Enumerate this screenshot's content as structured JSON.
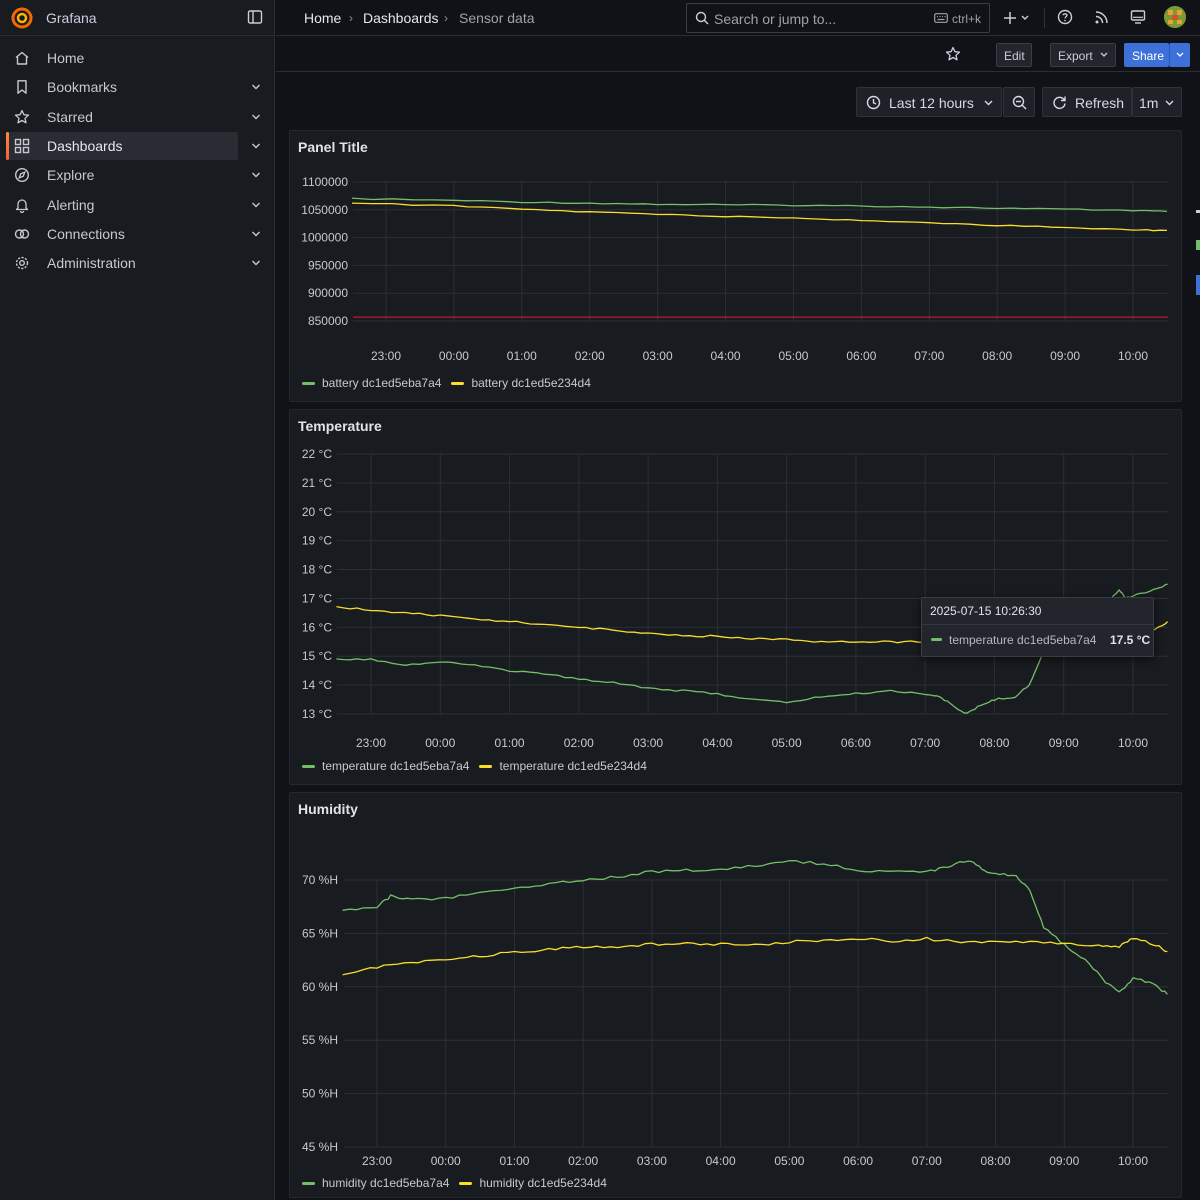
{
  "app": {
    "name": "Grafana"
  },
  "sidebar": {
    "items": [
      {
        "label": "Home",
        "icon": "home-icon",
        "chevron": false,
        "active": false
      },
      {
        "label": "Bookmarks",
        "icon": "bookmark-icon",
        "chevron": true,
        "active": false
      },
      {
        "label": "Starred",
        "icon": "star-icon",
        "chevron": true,
        "active": false
      },
      {
        "label": "Dashboards",
        "icon": "dashboards-grid-icon",
        "chevron": true,
        "active": true
      },
      {
        "label": "Explore",
        "icon": "compass-icon",
        "chevron": true,
        "active": false
      },
      {
        "label": "Alerting",
        "icon": "bell-icon",
        "chevron": true,
        "active": false
      },
      {
        "label": "Connections",
        "icon": "connections-icon",
        "chevron": true,
        "active": false
      },
      {
        "label": "Administration",
        "icon": "cog-icon",
        "chevron": true,
        "active": false
      }
    ]
  },
  "breadcrumb": [
    "Home",
    "Dashboards",
    "Sensor data"
  ],
  "search": {
    "placeholder": "Search or jump to...",
    "shortcut": "ctrl+k"
  },
  "toolbar": {
    "edit_label": "Edit",
    "export_label": "Export",
    "share_label": "Share"
  },
  "time": {
    "range_label": "Last 12 hours",
    "refresh_label": "Refresh",
    "interval": "1m"
  },
  "colors": {
    "green": "#73bf69",
    "yellow": "#fade2a",
    "threshold": "#c4162a",
    "accent": "#3d71d9"
  },
  "tooltip": {
    "time": "2025-07-15 10:26:30",
    "series": "temperature dc1ed5eba7a4",
    "value": "17.5 °C"
  },
  "panels": [
    {
      "title": "Panel Title",
      "legend": [
        "battery dc1ed5eba7a4",
        "battery dc1ed5e234d4"
      ]
    },
    {
      "title": "Temperature",
      "legend": [
        "temperature dc1ed5eba7a4",
        "temperature dc1ed5e234d4"
      ]
    },
    {
      "title": "Humidity",
      "legend": [
        "humidity dc1ed5eba7a4",
        "humidity dc1ed5e234d4"
      ]
    }
  ],
  "chart_data": [
    {
      "type": "line",
      "title": "Panel Title",
      "x_ticks": [
        "23:00",
        "00:00",
        "01:00",
        "02:00",
        "03:00",
        "04:00",
        "05:00",
        "06:00",
        "07:00",
        "08:00",
        "09:00",
        "10:00"
      ],
      "y_ticks": [
        "1100000",
        "1050000",
        "1000000",
        "950000",
        "900000",
        "850000"
      ],
      "ylim": [
        850000,
        1100000
      ],
      "grid": true,
      "legend_placement": "bottom-left",
      "threshold": 857000,
      "series": [
        {
          "name": "battery dc1ed5eba7a4",
          "color": "#73bf69",
          "x": [
            -1.5,
            0,
            1,
            2,
            3,
            4,
            5,
            6,
            7,
            8,
            9,
            10,
            10.5
          ],
          "y": [
            1070000,
            1067000,
            1064000,
            1062000,
            1060000,
            1059000,
            1058000,
            1057000,
            1055000,
            1053000,
            1051000,
            1049000,
            1047000
          ]
        },
        {
          "name": "battery dc1ed5e234d4",
          "color": "#fade2a",
          "x": [
            -1.5,
            0,
            1,
            2,
            3,
            4,
            5,
            6,
            7,
            8,
            9,
            10,
            10.5
          ],
          "y": [
            1062000,
            1057000,
            1051000,
            1046000,
            1042000,
            1038000,
            1035000,
            1031000,
            1027000,
            1022000,
            1018000,
            1014000,
            1013000
          ]
        }
      ]
    },
    {
      "type": "line",
      "title": "Temperature",
      "x_ticks": [
        "23:00",
        "00:00",
        "01:00",
        "02:00",
        "03:00",
        "04:00",
        "05:00",
        "06:00",
        "07:00",
        "08:00",
        "09:00",
        "10:00"
      ],
      "y_ticks": [
        "22 °C",
        "21 °C",
        "20 °C",
        "19 °C",
        "18 °C",
        "17 °C",
        "16 °C",
        "15 °C",
        "14 °C",
        "13 °C"
      ],
      "ylim": [
        13,
        22
      ],
      "grid": true,
      "legend_placement": "bottom-left",
      "series": [
        {
          "name": "temperature dc1ed5eba7a4",
          "color": "#73bf69",
          "x": [
            -1.5,
            -1,
            -0.5,
            0,
            0.5,
            1,
            1.5,
            2,
            2.5,
            3,
            3.5,
            4,
            4.5,
            5,
            5.5,
            6,
            6.5,
            7,
            7.2,
            7.4,
            7.6,
            7.8,
            8,
            8.3,
            8.5,
            8.7,
            9,
            9.3,
            9.6,
            9.8,
            9.9,
            10,
            10.3,
            10.5
          ],
          "y": [
            14.9,
            14.9,
            14.7,
            14.8,
            14.7,
            14.5,
            14.4,
            14.2,
            14.1,
            13.9,
            13.8,
            13.7,
            13.5,
            13.4,
            13.6,
            13.7,
            13.8,
            13.7,
            13.6,
            13.3,
            13.0,
            13.3,
            13.5,
            13.6,
            14.0,
            15.1,
            16.1,
            16.4,
            16.8,
            17.3,
            17.0,
            17.1,
            17.3,
            17.5
          ]
        },
        {
          "name": "temperature dc1ed5e234d4",
          "color": "#fade2a",
          "x": [
            -1.5,
            -1,
            -0.5,
            0,
            0.5,
            1,
            1.5,
            2,
            2.5,
            3,
            3.5,
            4,
            4.5,
            5,
            5.5,
            6,
            6.5,
            7,
            7.5,
            8,
            8.5,
            9,
            9.5,
            10,
            10.3,
            10.5
          ],
          "y": [
            16.7,
            16.6,
            16.5,
            16.4,
            16.3,
            16.2,
            16.1,
            16.0,
            15.9,
            15.8,
            15.7,
            15.7,
            15.6,
            15.6,
            15.5,
            15.5,
            15.5,
            15.5,
            15.5,
            15.5,
            15.5,
            15.6,
            15.7,
            15.8,
            15.9,
            16.2
          ]
        }
      ]
    },
    {
      "type": "line",
      "title": "Humidity",
      "x_ticks": [
        "23:00",
        "00:00",
        "01:00",
        "02:00",
        "03:00",
        "04:00",
        "05:00",
        "06:00",
        "07:00",
        "08:00",
        "09:00",
        "10:00"
      ],
      "y_ticks": [
        "70 %H",
        "65 %H",
        "60 %H",
        "55 %H",
        "50 %H",
        "45 %H"
      ],
      "ylim": [
        45,
        73
      ],
      "grid": true,
      "legend_placement": "bottom-left",
      "series": [
        {
          "name": "humidity dc1ed5eba7a4",
          "color": "#73bf69",
          "x": [
            -1.5,
            -1,
            -0.8,
            -0.5,
            0,
            0.5,
            1,
            1.5,
            2,
            2.5,
            3,
            3.5,
            4,
            4.5,
            5,
            5.5,
            6,
            6.5,
            7,
            7.3,
            7.6,
            7.8,
            8,
            8.3,
            8.5,
            8.7,
            9,
            9.3,
            9.6,
            9.8,
            10,
            10.3,
            10.5
          ],
          "y": [
            67.1,
            67.5,
            68.5,
            68.2,
            68.3,
            68.8,
            69.2,
            69.7,
            70.0,
            70.3,
            70.8,
            70.9,
            71.0,
            71.3,
            71.8,
            71.5,
            70.9,
            70.8,
            70.8,
            71.2,
            71.9,
            71.0,
            70.6,
            70.3,
            69.0,
            65.5,
            64.0,
            62.5,
            60.5,
            59.5,
            60.8,
            60.3,
            59.3
          ]
        },
        {
          "name": "humidity dc1ed5e234d4",
          "color": "#fade2a",
          "x": [
            -1.5,
            -1,
            -0.5,
            0,
            0.5,
            1,
            1.5,
            2,
            2.5,
            3,
            3.5,
            4,
            4.5,
            5,
            5.5,
            6,
            6.5,
            7,
            7.5,
            8,
            8.5,
            9,
            9.5,
            9.8,
            10,
            10.3,
            10.5
          ],
          "y": [
            61.2,
            61.8,
            62.3,
            62.6,
            62.9,
            63.2,
            63.5,
            63.7,
            63.8,
            64.0,
            64.1,
            64.0,
            63.9,
            64.2,
            64.4,
            64.5,
            64.3,
            64.5,
            64.2,
            64.2,
            64.2,
            64.0,
            63.9,
            63.8,
            64.5,
            64.0,
            63.3
          ]
        }
      ]
    }
  ]
}
